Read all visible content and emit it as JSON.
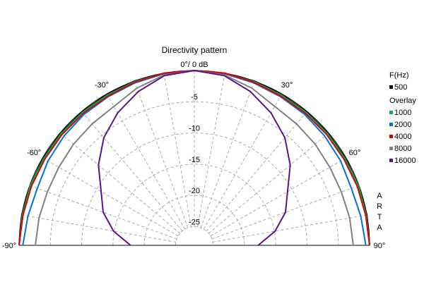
{
  "chart_data": {
    "type": "polar",
    "title": "Directivity pattern",
    "legend_title": "F(Hz)",
    "overlay_label": "Overlay",
    "watermark": "ARTA",
    "theta": [
      -90,
      -80,
      -70,
      -60,
      -50,
      -40,
      -30,
      -20,
      -10,
      0,
      10,
      20,
      30,
      40,
      50,
      60,
      70,
      80,
      90
    ],
    "rlim": [
      -28,
      0
    ],
    "rticks": [
      -5,
      -10,
      -15,
      -20,
      -25
    ],
    "thetaticks": [
      {
        "value": -90,
        "label": "-90°"
      },
      {
        "value": -60,
        "label": "-60°"
      },
      {
        "value": -30,
        "label": "-30°"
      },
      {
        "value": 0,
        "label": "0°/ 0 dB"
      },
      {
        "value": 30,
        "label": "30°"
      },
      {
        "value": 60,
        "label": "60°"
      },
      {
        "value": 90,
        "label": "90°"
      }
    ],
    "grid": true,
    "series": [
      {
        "name": "500",
        "color": "#000000",
        "values": [
          0,
          0,
          -0.1,
          -0.1,
          -0.1,
          -0.1,
          -0.1,
          0,
          0,
          0,
          0,
          0,
          -0.1,
          -0.1,
          -0.1,
          -0.1,
          -0.1,
          0,
          0
        ]
      },
      {
        "name": "1000",
        "color": "#00b050",
        "values": [
          0,
          -0.1,
          -0.1,
          -0.2,
          -0.2,
          -0.2,
          -0.2,
          -0.1,
          0,
          0,
          0,
          -0.1,
          -0.2,
          -0.2,
          -0.2,
          -0.2,
          -0.1,
          -0.1,
          0
        ]
      },
      {
        "name": "2000",
        "color": "#0070e0",
        "values": [
          -0.6,
          -1,
          -1.3,
          -1,
          -0.8,
          -0.6,
          -0.5,
          -0.3,
          -0.1,
          0,
          -0.1,
          -0.3,
          -0.5,
          -0.6,
          -0.8,
          -1,
          -1.3,
          -1,
          -0.6
        ]
      },
      {
        "name": "4000",
        "color": "#e00000",
        "values": [
          0,
          -0.2,
          -0.3,
          -0.4,
          -0.4,
          -0.4,
          -0.4,
          -0.2,
          0,
          0,
          0,
          -0.2,
          -0.4,
          -0.4,
          -0.4,
          -0.4,
          -0.3,
          -0.2,
          0
        ]
      },
      {
        "name": "8000",
        "color": "#808080",
        "values": [
          -2.6,
          -2.8,
          -3,
          -3,
          -2.8,
          -2.6,
          -2.3,
          -1.2,
          -0.3,
          0,
          -0.3,
          -1.2,
          -2.3,
          -2.6,
          -2.8,
          -3,
          -3,
          -2.8,
          -2.6
        ]
      },
      {
        "name": "16000",
        "color": "#5a1390",
        "values": [
          -17.8,
          -14.9,
          -12.5,
          -10.8,
          -8,
          -5.5,
          -3.5,
          -1.8,
          -0.4,
          0,
          -0.4,
          -1.8,
          -3.5,
          -5.5,
          -8,
          -10.8,
          -12.5,
          -14.9,
          -17.8
        ]
      }
    ]
  }
}
